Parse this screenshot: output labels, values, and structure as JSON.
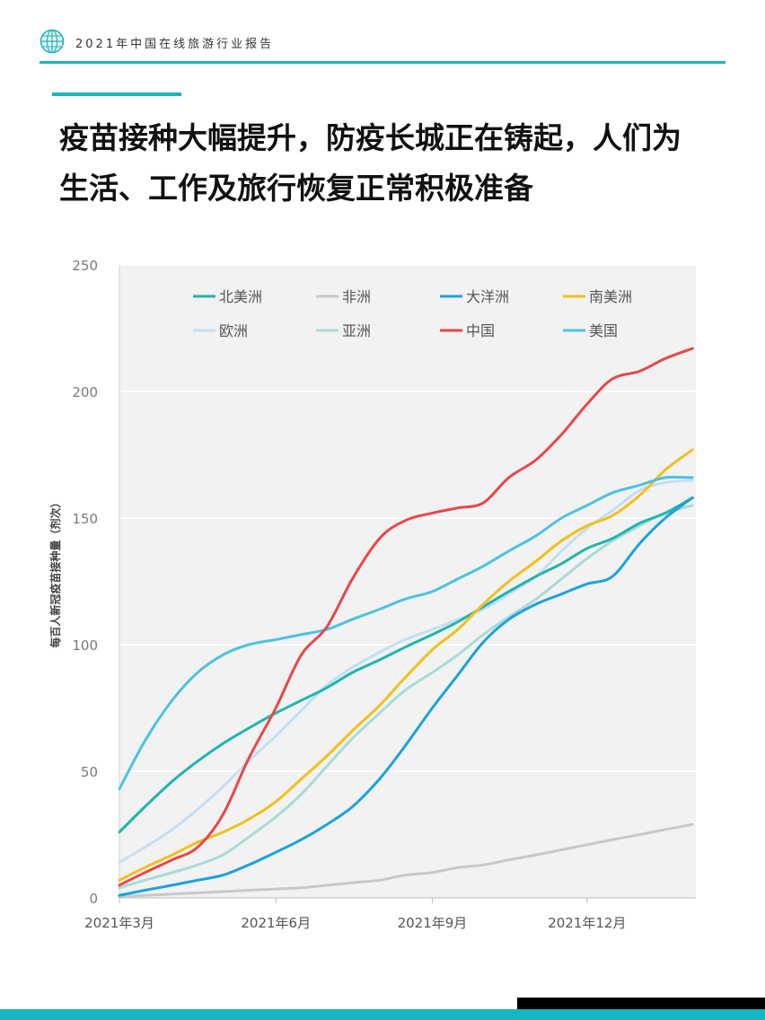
{
  "header": {
    "report_title": "2021年中国在线旅游行业报告",
    "accent_color": "#1fb5b8",
    "logo_icon": "globe-icon"
  },
  "headline": {
    "line1": "疫苗接种大幅提升，防疫长城正在铸起，人们为",
    "line2": "生活、工作及旅行恢复正常积极准备"
  },
  "chart_data": {
    "type": "line",
    "x": [
      "2021-03-01",
      "2021-03-16",
      "2021-04-01",
      "2021-04-16",
      "2021-05-01",
      "2021-05-16",
      "2021-06-01",
      "2021-06-16",
      "2021-07-01",
      "2021-07-16",
      "2021-08-01",
      "2021-08-16",
      "2021-09-01",
      "2021-09-16",
      "2021-10-01",
      "2021-10-16",
      "2021-11-01",
      "2021-11-16",
      "2021-12-01",
      "2021-12-16",
      "2022-01-01",
      "2022-01-16",
      "2022-02-01"
    ],
    "xticks": [
      "2021年3月",
      "2021年6月",
      "2021年9月",
      "2021年12月"
    ],
    "xtick_dates": [
      "2021-03-01",
      "2021-06-01",
      "2021-09-01",
      "2021-12-01"
    ],
    "xlim": [
      "2021-03-01",
      "2022-02-03"
    ],
    "ylabel": "每百人新冠疫苗接种量（剂次）",
    "ylim": [
      0,
      250
    ],
    "yticks": [
      0,
      50,
      100,
      150,
      200,
      250
    ],
    "grid": true,
    "legend_position": "top",
    "series": [
      {
        "name": "北美洲",
        "color": "#1fb5ae",
        "values": [
          26,
          36,
          46,
          54,
          61,
          67,
          73,
          78,
          83,
          89,
          94,
          99,
          104,
          109,
          115,
          121,
          127,
          132,
          138,
          142,
          148,
          152,
          158
        ]
      },
      {
        "name": "非洲",
        "color": "#c8c8c8",
        "values": [
          0.5,
          1,
          1.5,
          2,
          2.5,
          3,
          3.5,
          4,
          5,
          6,
          7,
          9,
          10,
          12,
          13,
          15,
          17,
          19,
          21,
          23,
          25,
          27,
          29
        ]
      },
      {
        "name": "大洋洲",
        "color": "#1ba3dc",
        "values": [
          1,
          3,
          5,
          7,
          9,
          13,
          18,
          23,
          29,
          36,
          47,
          60,
          75,
          88,
          101,
          110,
          116,
          120,
          124,
          127,
          140,
          150,
          158
        ]
      },
      {
        "name": "南美洲",
        "color": "#f3bf1b",
        "values": [
          7,
          12,
          17,
          22,
          26,
          31,
          38,
          47,
          56,
          66,
          76,
          87,
          98,
          106,
          116,
          125,
          133,
          141,
          147,
          151,
          159,
          169,
          177
        ]
      },
      {
        "name": "欧洲",
        "color": "#c5def2",
        "values": [
          14,
          20,
          27,
          35,
          44,
          54,
          64,
          74,
          84,
          91,
          97,
          102,
          106,
          110,
          114,
          120,
          127,
          137,
          146,
          153,
          161,
          164,
          165
        ]
      },
      {
        "name": "亚洲",
        "color": "#a7dcd8",
        "values": [
          4,
          7,
          10,
          13,
          17,
          24,
          32,
          41,
          52,
          63,
          73,
          82,
          89,
          96,
          104,
          111,
          118,
          126,
          134,
          141,
          147,
          152,
          155
        ]
      },
      {
        "name": "中国",
        "color": "#e8474a",
        "values": [
          5,
          10,
          15,
          20,
          33,
          55,
          75,
          96,
          107,
          126,
          142,
          149,
          152,
          154,
          156,
          166,
          173,
          183,
          195,
          205,
          208,
          213,
          217
        ]
      },
      {
        "name": "美国",
        "color": "#4cc3e0",
        "values": [
          43,
          62,
          78,
          89,
          96,
          100,
          102,
          104,
          106,
          110,
          114,
          118,
          121,
          126,
          131,
          137,
          143,
          150,
          155,
          160,
          163,
          166,
          166
        ]
      }
    ]
  }
}
